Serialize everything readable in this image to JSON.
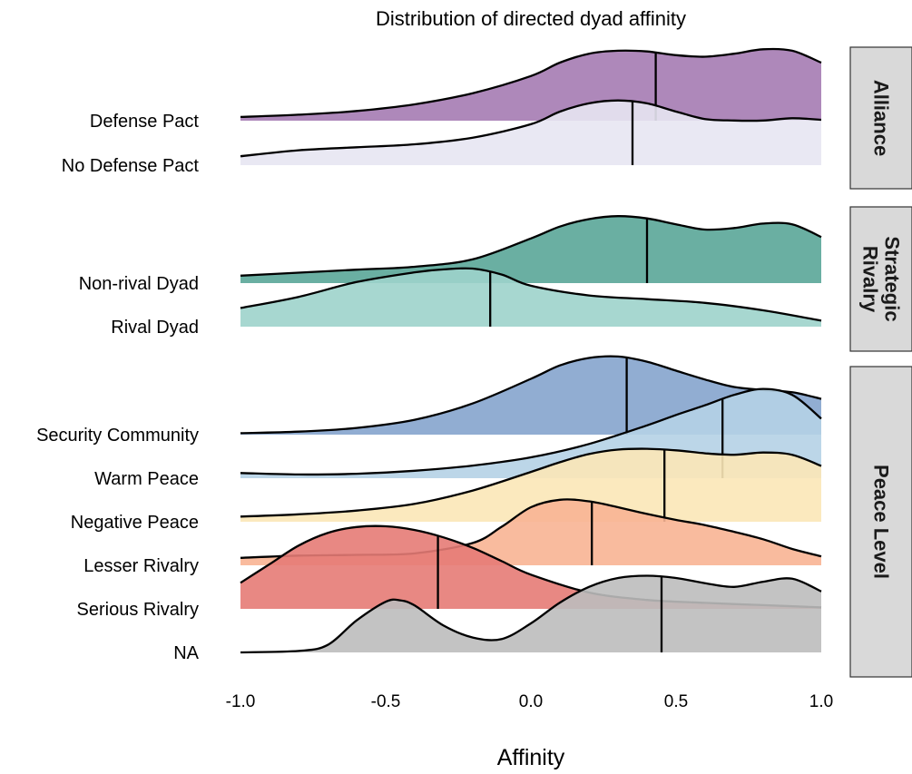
{
  "chart_data": {
    "type": "ridgeline",
    "title": "Distribution of directed dyad affinity",
    "xlabel": "Affinity",
    "ylabel": "",
    "xlim": [
      -1.0,
      1.0
    ],
    "xticks": [
      -1.0,
      -0.5,
      0.0,
      0.5,
      1.0
    ],
    "xtick_labels": [
      "-1.0",
      "-0.5",
      "0.0",
      "0.5",
      "1.0"
    ],
    "legend": "none",
    "grid": false,
    "facets": [
      {
        "strip": [
          "Alliance"
        ],
        "groups": [
          {
            "name": "Defense Pact",
            "color": "#a57bb3",
            "median": 0.43,
            "density": [
              [
                -1.0,
                0.05
              ],
              [
                -0.8,
                0.08
              ],
              [
                -0.6,
                0.13
              ],
              [
                -0.4,
                0.22
              ],
              [
                -0.2,
                0.37
              ],
              [
                0.0,
                0.6
              ],
              [
                0.1,
                0.78
              ],
              [
                0.2,
                0.9
              ],
              [
                0.3,
                0.94
              ],
              [
                0.4,
                0.93
              ],
              [
                0.5,
                0.88
              ],
              [
                0.6,
                0.86
              ],
              [
                0.7,
                0.9
              ],
              [
                0.8,
                0.96
              ],
              [
                0.9,
                0.94
              ],
              [
                1.0,
                0.78
              ]
            ]
          },
          {
            "name": "No Defense Pact",
            "color": "#e7e5f2",
            "median": 0.35,
            "density": [
              [
                -1.0,
                0.12
              ],
              [
                -0.8,
                0.2
              ],
              [
                -0.6,
                0.24
              ],
              [
                -0.4,
                0.28
              ],
              [
                -0.2,
                0.37
              ],
              [
                0.0,
                0.55
              ],
              [
                0.1,
                0.72
              ],
              [
                0.2,
                0.83
              ],
              [
                0.3,
                0.87
              ],
              [
                0.4,
                0.83
              ],
              [
                0.5,
                0.72
              ],
              [
                0.6,
                0.62
              ],
              [
                0.7,
                0.6
              ],
              [
                0.8,
                0.6
              ],
              [
                0.9,
                0.63
              ],
              [
                1.0,
                0.61
              ]
            ]
          }
        ]
      },
      {
        "strip": [
          "Strategic",
          "Rivalry"
        ],
        "groups": [
          {
            "name": "Non-rival Dyad",
            "color": "#5aa698",
            "median": 0.4,
            "density": [
              [
                -1.0,
                0.1
              ],
              [
                -0.8,
                0.14
              ],
              [
                -0.6,
                0.18
              ],
              [
                -0.4,
                0.22
              ],
              [
                -0.2,
                0.32
              ],
              [
                0.0,
                0.6
              ],
              [
                0.1,
                0.76
              ],
              [
                0.2,
                0.86
              ],
              [
                0.3,
                0.9
              ],
              [
                0.4,
                0.87
              ],
              [
                0.5,
                0.79
              ],
              [
                0.6,
                0.72
              ],
              [
                0.7,
                0.74
              ],
              [
                0.8,
                0.8
              ],
              [
                0.9,
                0.79
              ],
              [
                1.0,
                0.62
              ]
            ]
          },
          {
            "name": "Rival Dyad",
            "color": "#9dd3cb",
            "median": -0.14,
            "density": [
              [
                -1.0,
                0.25
              ],
              [
                -0.8,
                0.4
              ],
              [
                -0.6,
                0.6
              ],
              [
                -0.4,
                0.73
              ],
              [
                -0.3,
                0.77
              ],
              [
                -0.2,
                0.78
              ],
              [
                -0.1,
                0.7
              ],
              [
                0.0,
                0.55
              ],
              [
                0.2,
                0.42
              ],
              [
                0.4,
                0.37
              ],
              [
                0.6,
                0.32
              ],
              [
                0.8,
                0.22
              ],
              [
                1.0,
                0.08
              ]
            ]
          }
        ]
      },
      {
        "strip": [
          "Peace Level"
        ],
        "groups": [
          {
            "name": "Security Community",
            "color": "#85a4cd",
            "median": 0.33,
            "density": [
              [
                -1.0,
                0.02
              ],
              [
                -0.8,
                0.04
              ],
              [
                -0.6,
                0.09
              ],
              [
                -0.4,
                0.2
              ],
              [
                -0.2,
                0.42
              ],
              [
                0.0,
                0.75
              ],
              [
                0.1,
                0.93
              ],
              [
                0.2,
                1.03
              ],
              [
                0.3,
                1.05
              ],
              [
                0.4,
                0.98
              ],
              [
                0.5,
                0.86
              ],
              [
                0.6,
                0.74
              ],
              [
                0.7,
                0.64
              ],
              [
                0.8,
                0.6
              ],
              [
                0.9,
                0.57
              ],
              [
                1.0,
                0.48
              ]
            ]
          },
          {
            "name": "Warm Peace",
            "color": "#b5d1e6",
            "median": 0.66,
            "density": [
              [
                -1.0,
                0.07
              ],
              [
                -0.8,
                0.05
              ],
              [
                -0.6,
                0.06
              ],
              [
                -0.4,
                0.1
              ],
              [
                -0.2,
                0.17
              ],
              [
                0.0,
                0.28
              ],
              [
                0.2,
                0.46
              ],
              [
                0.4,
                0.71
              ],
              [
                0.5,
                0.85
              ],
              [
                0.6,
                0.98
              ],
              [
                0.7,
                1.12
              ],
              [
                0.8,
                1.2
              ],
              [
                0.9,
                1.12
              ],
              [
                1.0,
                0.8
              ]
            ]
          },
          {
            "name": "Negative Peace",
            "color": "#fbe7b7",
            "median": 0.46,
            "density": [
              [
                -1.0,
                0.07
              ],
              [
                -0.8,
                0.1
              ],
              [
                -0.6,
                0.15
              ],
              [
                -0.4,
                0.24
              ],
              [
                -0.2,
                0.42
              ],
              [
                0.0,
                0.67
              ],
              [
                0.1,
                0.8
              ],
              [
                0.2,
                0.91
              ],
              [
                0.3,
                0.97
              ],
              [
                0.4,
                0.98
              ],
              [
                0.5,
                0.96
              ],
              [
                0.6,
                0.92
              ],
              [
                0.7,
                0.9
              ],
              [
                0.8,
                0.93
              ],
              [
                0.9,
                0.9
              ],
              [
                1.0,
                0.75
              ]
            ]
          },
          {
            "name": "Lesser Rivalry",
            "color": "#f8b493",
            "median": 0.21,
            "density": [
              [
                -1.0,
                0.1
              ],
              [
                -0.8,
                0.13
              ],
              [
                -0.6,
                0.14
              ],
              [
                -0.4,
                0.16
              ],
              [
                -0.2,
                0.3
              ],
              [
                -0.1,
                0.52
              ],
              [
                0.0,
                0.78
              ],
              [
                0.1,
                0.88
              ],
              [
                0.2,
                0.86
              ],
              [
                0.3,
                0.78
              ],
              [
                0.4,
                0.69
              ],
              [
                0.5,
                0.61
              ],
              [
                0.6,
                0.54
              ],
              [
                0.7,
                0.45
              ],
              [
                0.8,
                0.35
              ],
              [
                0.9,
                0.22
              ],
              [
                1.0,
                0.12
              ]
            ]
          },
          {
            "name": "Serious Rivalry",
            "color": "#e57b75",
            "median": -0.32,
            "density": [
              [
                -1.0,
                0.35
              ],
              [
                -0.9,
                0.6
              ],
              [
                -0.8,
                0.85
              ],
              [
                -0.7,
                1.02
              ],
              [
                -0.6,
                1.1
              ],
              [
                -0.5,
                1.11
              ],
              [
                -0.4,
                1.06
              ],
              [
                -0.3,
                0.96
              ],
              [
                -0.2,
                0.82
              ],
              [
                -0.1,
                0.64
              ],
              [
                0.0,
                0.46
              ],
              [
                0.2,
                0.22
              ],
              [
                0.4,
                0.12
              ],
              [
                0.6,
                0.08
              ],
              [
                0.8,
                0.05
              ],
              [
                1.0,
                0.02
              ]
            ]
          },
          {
            "name": "NA",
            "color": "#bdbdbd",
            "median": 0.45,
            "density": [
              [
                -1.0,
                0.0
              ],
              [
                -0.8,
                0.02
              ],
              [
                -0.7,
                0.1
              ],
              [
                -0.6,
                0.43
              ],
              [
                -0.5,
                0.68
              ],
              [
                -0.45,
                0.7
              ],
              [
                -0.4,
                0.63
              ],
              [
                -0.3,
                0.36
              ],
              [
                -0.2,
                0.2
              ],
              [
                -0.1,
                0.18
              ],
              [
                0.0,
                0.39
              ],
              [
                0.1,
                0.67
              ],
              [
                0.2,
                0.88
              ],
              [
                0.3,
                1.0
              ],
              [
                0.4,
                1.03
              ],
              [
                0.5,
                1.0
              ],
              [
                0.6,
                0.93
              ],
              [
                0.7,
                0.88
              ],
              [
                0.8,
                0.95
              ],
              [
                0.9,
                0.99
              ],
              [
                1.0,
                0.82
              ]
            ]
          }
        ]
      }
    ]
  }
}
